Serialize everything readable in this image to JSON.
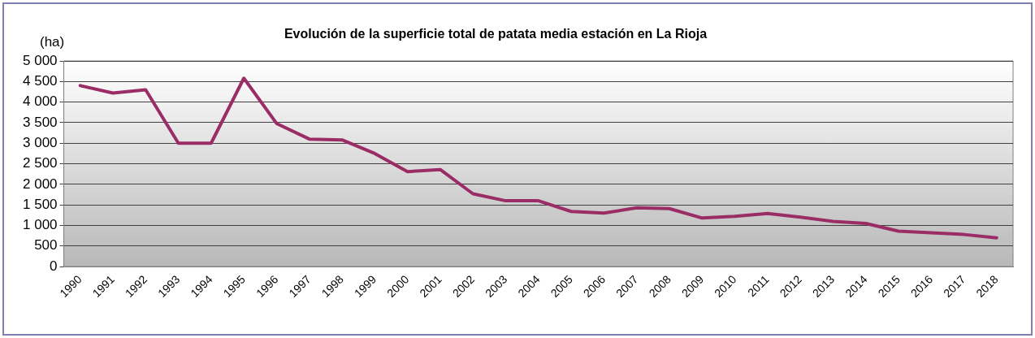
{
  "chart_data": {
    "type": "line",
    "title": "Evolución de la superficie total de patata media estación en La Rioja",
    "ylabel": "(ha)",
    "categories": [
      "1990",
      "1991",
      "1992",
      "1993",
      "1994",
      "1995",
      "1996",
      "1997",
      "1998",
      "1999",
      "2000",
      "2001",
      "2002",
      "2003",
      "2004",
      "2005",
      "2006",
      "2007",
      "2008",
      "2009",
      "2010",
      "2011",
      "2012",
      "2013",
      "2014",
      "2015",
      "2016",
      "2017",
      "2018"
    ],
    "series": [
      {
        "color": "#9b2d66",
        "values": [
          4400,
          4220,
          4300,
          3000,
          3000,
          4580,
          3480,
          3100,
          3080,
          2750,
          2310,
          2360,
          1770,
          1600,
          1600,
          1340,
          1300,
          1430,
          1410,
          1180,
          1220,
          1290,
          1200,
          1100,
          1050,
          860,
          820,
          780,
          700
        ]
      }
    ],
    "ylim": [
      0,
      5000
    ],
    "yticks": [
      0,
      {
        "value": 500,
        "label": "500"
      },
      {
        "value": 1000,
        "label": "1 000"
      },
      {
        "value": 1500,
        "label": "1 500"
      },
      {
        "value": 2000,
        "label": "2 000"
      },
      {
        "value": 2500,
        "label": "2 500"
      },
      {
        "value": 3000,
        "label": "3 000"
      },
      {
        "value": 3500,
        "label": "3 500"
      },
      {
        "value": 4000,
        "label": "4 000"
      },
      {
        "value": 4500,
        "label": "4 500"
      },
      {
        "value": 5000,
        "label": "5 000"
      }
    ],
    "grid": "y",
    "legend": false,
    "marker": "none",
    "line_style": "solid"
  }
}
